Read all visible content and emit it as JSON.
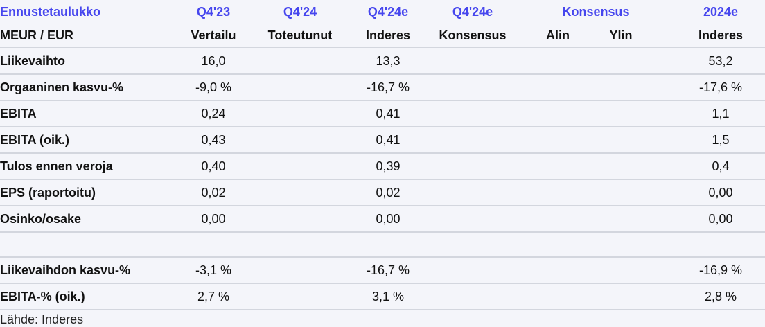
{
  "header": {
    "title": "Ennustetaulukko",
    "unit": "MEUR / EUR",
    "columns": [
      {
        "period": "Q4'23",
        "label": "Vertailu"
      },
      {
        "period": "Q4'24",
        "label": "Toteutunut"
      },
      {
        "period": "Q4'24e",
        "label": "Inderes"
      },
      {
        "period": "Q4'24e",
        "label": "Konsensus"
      }
    ],
    "consensus_group": "Konsensus",
    "consensus_low": "Alin",
    "consensus_high": "Ylin",
    "annual_period": "2024e",
    "annual_label": "Inderes"
  },
  "rows": [
    {
      "label": "Liikevaihto",
      "v": [
        "16,0",
        "",
        "13,3",
        "",
        "",
        "",
        "53,2"
      ]
    },
    {
      "label": "Orgaaninen kasvu-%",
      "v": [
        "-9,0 %",
        "",
        "-16,7 %",
        "",
        "",
        "",
        "-17,6 %"
      ]
    },
    {
      "label": "EBITA",
      "v": [
        "0,24",
        "",
        "0,41",
        "",
        "",
        "",
        "1,1"
      ]
    },
    {
      "label": "EBITA (oik.)",
      "v": [
        "0,43",
        "",
        "0,41",
        "",
        "",
        "",
        "1,5"
      ]
    },
    {
      "label": "Tulos ennen veroja",
      "v": [
        "0,40",
        "",
        "0,39",
        "",
        "",
        "",
        "0,4"
      ]
    },
    {
      "label": "EPS (raportoitu)",
      "v": [
        "0,02",
        "",
        "0,02",
        "",
        "",
        "",
        "0,00"
      ]
    },
    {
      "label": "Osinko/osake",
      "v": [
        "0,00",
        "",
        "0,00",
        "",
        "",
        "",
        "0,00"
      ]
    }
  ],
  "rows2": [
    {
      "label": "Liikevaihdon kasvu-%",
      "v": [
        "-3,1 %",
        "",
        "-16,7 %",
        "",
        "",
        "",
        "-16,9 %"
      ]
    },
    {
      "label": "EBITA-% (oik.)",
      "v": [
        "2,7 %",
        "",
        "3,1 %",
        "",
        "",
        "",
        "2,8 %"
      ]
    }
  ],
  "source": "Lähde: Inderes",
  "colors": {
    "accent": "#4646ee",
    "background": "#f4f5fa",
    "divider": "#d3d6de"
  }
}
